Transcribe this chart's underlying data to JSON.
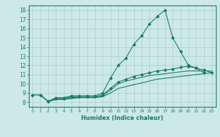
{
  "xlabel": "Humidex (Indice chaleur)",
  "bg_color": "#cce8e8",
  "grid_color": "#aacccc",
  "line_color": "#1a7a6a",
  "xlim": [
    -0.5,
    23.5
  ],
  "ylim": [
    7.5,
    18.5
  ],
  "xticks": [
    0,
    1,
    2,
    3,
    4,
    5,
    6,
    7,
    8,
    9,
    10,
    11,
    12,
    13,
    14,
    15,
    16,
    17,
    18,
    19,
    20,
    21,
    22,
    23
  ],
  "yticks": [
    8,
    9,
    10,
    11,
    12,
    13,
    14,
    15,
    16,
    17,
    18
  ],
  "series": [
    {
      "x": [
        0,
        1,
        2,
        3,
        4,
        5,
        6,
        7,
        8,
        9,
        10,
        11,
        12,
        13,
        14,
        15,
        16,
        17,
        18,
        19,
        20,
        21,
        22
      ],
      "y": [
        8.8,
        8.8,
        8.1,
        8.5,
        8.5,
        8.7,
        8.7,
        8.7,
        8.7,
        9.0,
        10.6,
        12.0,
        12.8,
        14.3,
        15.2,
        16.5,
        17.3,
        18.0,
        15.0,
        13.5,
        12.0,
        11.7,
        11.2
      ],
      "marker": true
    },
    {
      "x": [
        0,
        1,
        2,
        3,
        4,
        5,
        6,
        7,
        8,
        9,
        10,
        11,
        12,
        13,
        14,
        15,
        16,
        17,
        18,
        19,
        20,
        21,
        22,
        23
      ],
      "y": [
        8.8,
        8.8,
        8.1,
        8.4,
        8.4,
        8.6,
        8.6,
        8.6,
        8.6,
        8.8,
        9.5,
        10.2,
        10.5,
        10.8,
        11.0,
        11.2,
        11.4,
        11.5,
        11.6,
        11.8,
        11.9,
        11.7,
        11.5,
        11.2
      ],
      "marker": true
    },
    {
      "x": [
        0,
        1,
        2,
        3,
        4,
        5,
        6,
        7,
        8,
        9,
        10,
        11,
        12,
        13,
        14,
        15,
        16,
        17,
        18,
        19,
        20,
        21,
        22,
        23
      ],
      "y": [
        8.8,
        8.8,
        8.1,
        8.3,
        8.3,
        8.4,
        8.5,
        8.5,
        8.5,
        8.6,
        9.0,
        9.5,
        9.7,
        9.9,
        10.1,
        10.3,
        10.5,
        10.6,
        10.7,
        10.8,
        10.9,
        11.0,
        11.1,
        11.2
      ],
      "marker": false
    },
    {
      "x": [
        0,
        1,
        2,
        3,
        4,
        5,
        6,
        7,
        8,
        9,
        10,
        11,
        12,
        13,
        14,
        15,
        16,
        17,
        18,
        19,
        20,
        21,
        22,
        23
      ],
      "y": [
        8.8,
        8.8,
        8.1,
        8.3,
        8.3,
        8.5,
        8.5,
        8.5,
        8.5,
        8.7,
        9.3,
        10.0,
        10.3,
        10.5,
        10.7,
        10.9,
        11.0,
        11.1,
        11.2,
        11.3,
        11.4,
        11.4,
        11.4,
        11.4
      ],
      "marker": false
    }
  ]
}
